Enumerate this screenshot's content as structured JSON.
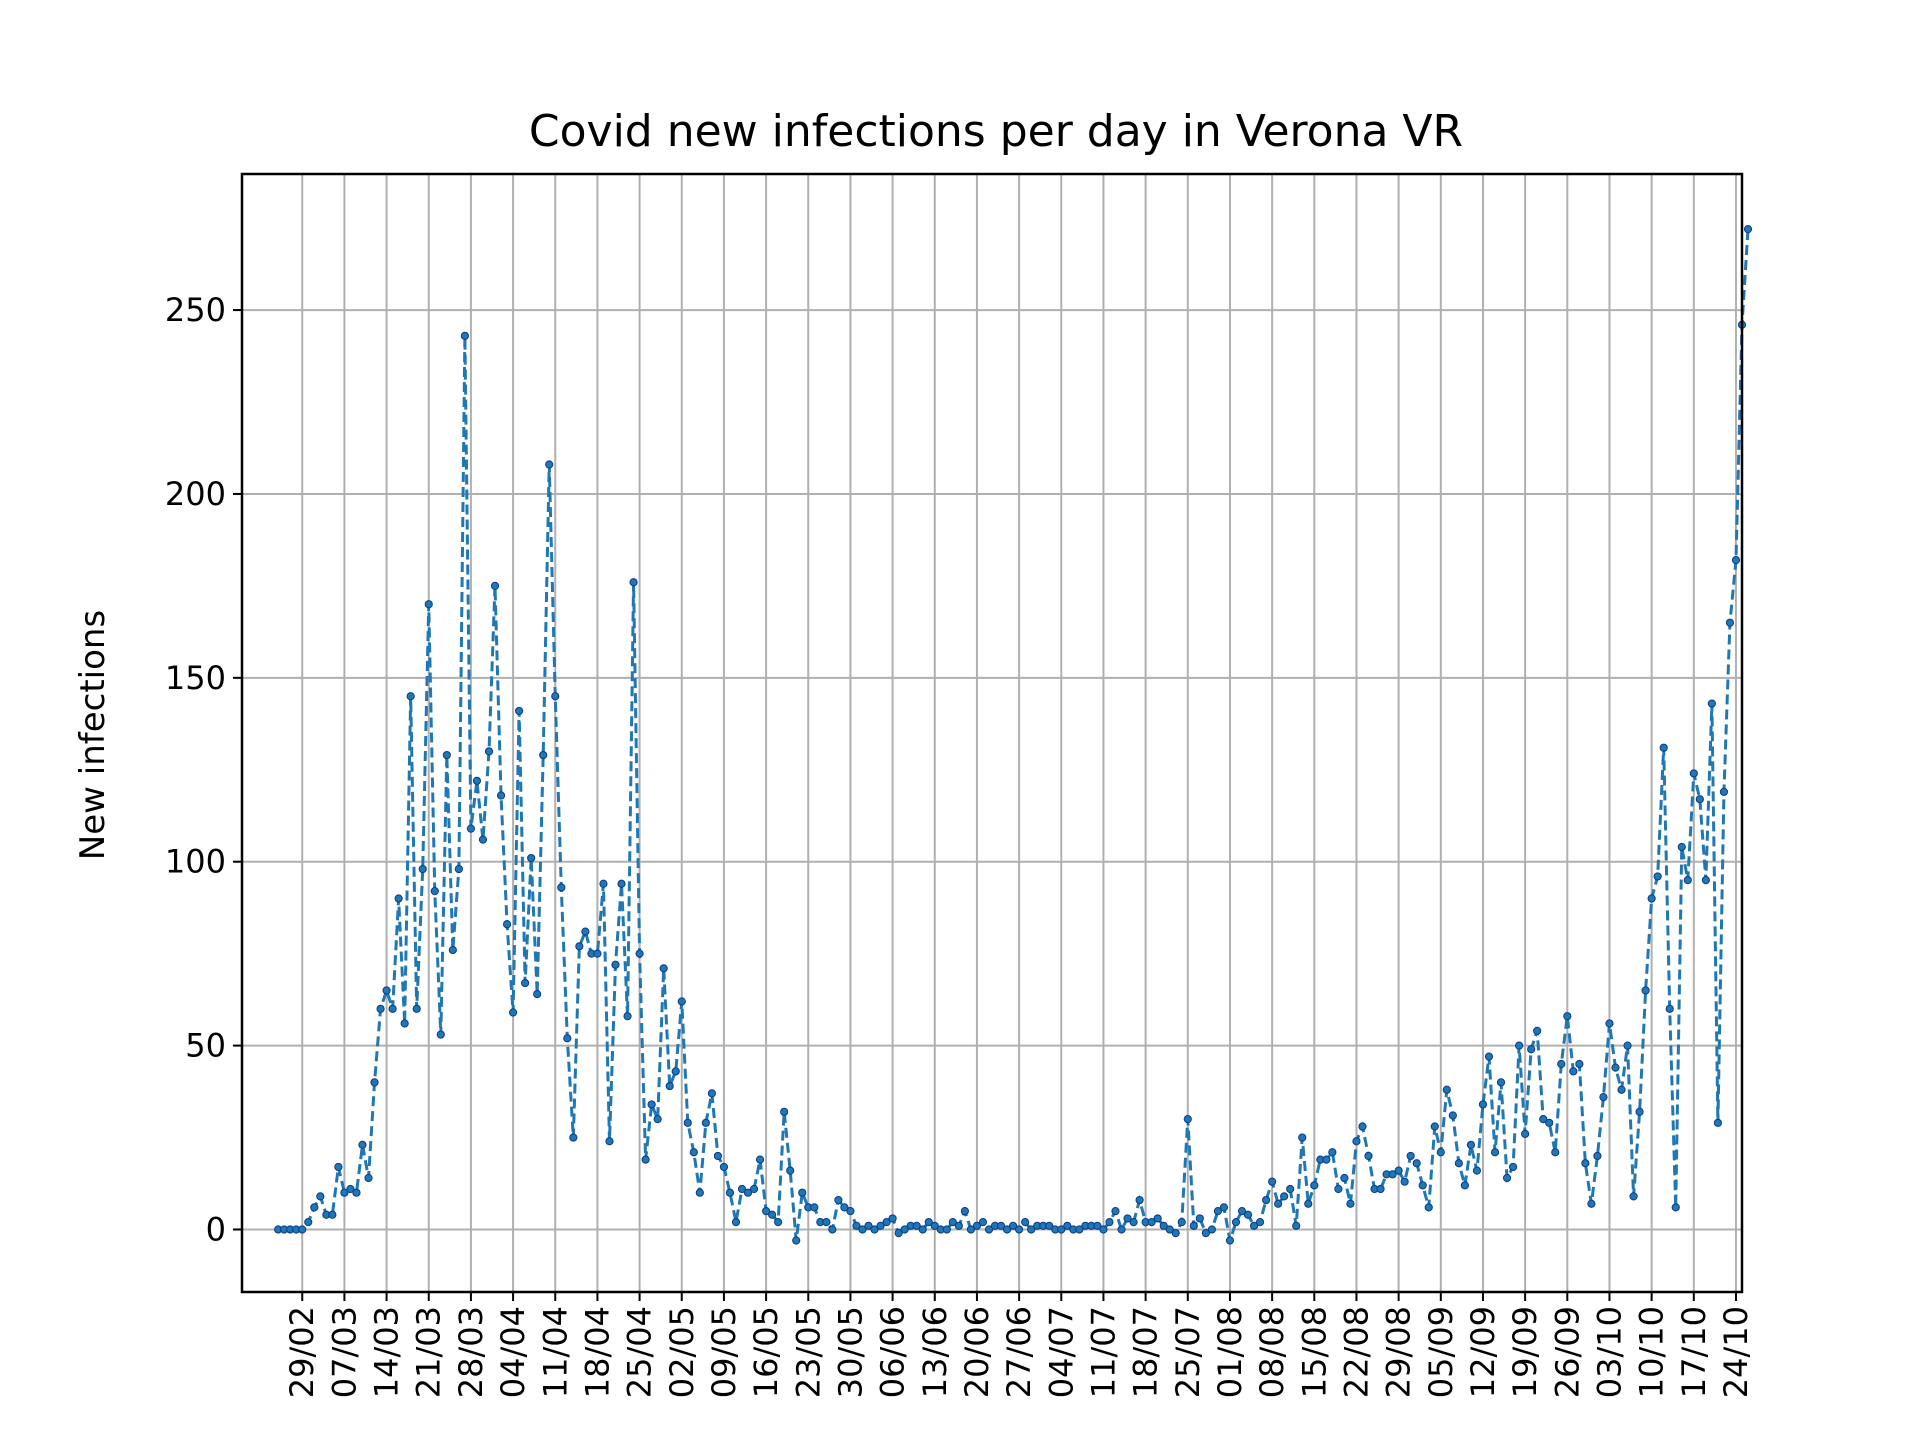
{
  "chart_data": {
    "type": "line",
    "title": "Covid new infections per day in Verona VR",
    "xlabel": "",
    "ylabel": "New infections",
    "ylim": [
      -17,
      287
    ],
    "xlim_days": [
      -6,
      243
    ],
    "grid": true,
    "yticks": [
      0,
      50,
      100,
      150,
      200,
      250
    ],
    "xticks": [
      {
        "label": "29/02",
        "day": 4
      },
      {
        "label": "07/03",
        "day": 11
      },
      {
        "label": "14/03",
        "day": 18
      },
      {
        "label": "21/03",
        "day": 25
      },
      {
        "label": "28/03",
        "day": 32
      },
      {
        "label": "04/04",
        "day": 39
      },
      {
        "label": "11/04",
        "day": 46
      },
      {
        "label": "18/04",
        "day": 53
      },
      {
        "label": "25/04",
        "day": 60
      },
      {
        "label": "02/05",
        "day": 67
      },
      {
        "label": "09/05",
        "day": 74
      },
      {
        "label": "16/05",
        "day": 81
      },
      {
        "label": "23/05",
        "day": 88
      },
      {
        "label": "30/05",
        "day": 95
      },
      {
        "label": "06/06",
        "day": 102
      },
      {
        "label": "13/06",
        "day": 109
      },
      {
        "label": "20/06",
        "day": 116
      },
      {
        "label": "27/06",
        "day": 123
      },
      {
        "label": "04/07",
        "day": 130
      },
      {
        "label": "11/07",
        "day": 137
      },
      {
        "label": "18/07",
        "day": 144
      },
      {
        "label": "25/07",
        "day": 151
      },
      {
        "label": "01/08",
        "day": 158
      },
      {
        "label": "08/08",
        "day": 165
      },
      {
        "label": "15/08",
        "day": 172
      },
      {
        "label": "22/08",
        "day": 179
      },
      {
        "label": "29/08",
        "day": 186
      },
      {
        "label": "05/09",
        "day": 193
      },
      {
        "label": "12/09",
        "day": 200
      },
      {
        "label": "19/09",
        "day": 207
      },
      {
        "label": "26/09",
        "day": 214
      },
      {
        "label": "03/10",
        "day": 221
      },
      {
        "label": "10/10",
        "day": 228
      },
      {
        "label": "17/10",
        "day": 235
      },
      {
        "label": "24/10",
        "day": 242
      }
    ],
    "series": [
      {
        "color": "#1f77b4",
        "values": [
          0,
          0,
          0,
          0,
          0,
          2,
          6,
          9,
          4,
          4,
          17,
          10,
          11,
          10,
          23,
          14,
          40,
          60,
          65,
          60,
          90,
          56,
          145,
          60,
          98,
          170,
          92,
          53,
          129,
          76,
          98,
          243,
          109,
          122,
          106,
          130,
          175,
          118,
          83,
          59,
          141,
          67,
          101,
          64,
          129,
          208,
          145,
          93,
          52,
          25,
          77,
          81,
          75,
          75,
          94,
          24,
          72,
          94,
          58,
          176,
          75,
          19,
          34,
          30,
          71,
          39,
          43,
          62,
          29,
          21,
          10,
          29,
          37,
          20,
          17,
          10,
          2,
          11,
          10,
          11,
          19,
          5,
          4,
          2,
          32,
          16,
          -3,
          10,
          6,
          6,
          2,
          2,
          0,
          8,
          6,
          5,
          1,
          0,
          1,
          0,
          1,
          2,
          3,
          -1,
          0,
          1,
          1,
          0,
          2,
          1,
          0,
          0,
          2,
          1,
          5,
          0,
          1,
          2,
          0,
          1,
          1,
          0,
          1,
          0,
          2,
          0,
          1,
          1,
          1,
          0,
          0,
          1,
          0,
          0,
          1,
          1,
          1,
          0,
          2,
          5,
          0,
          3,
          2,
          8,
          2,
          2,
          3,
          1,
          0,
          -1,
          2,
          30,
          1,
          3,
          -1,
          0,
          5,
          6,
          -3,
          2,
          5,
          4,
          1,
          2,
          8,
          13,
          7,
          9,
          11,
          1,
          25,
          7,
          12,
          19,
          19,
          21,
          11,
          14,
          7,
          24,
          28,
          20,
          11,
          11,
          15,
          15,
          16,
          13,
          20,
          18,
          12,
          6,
          28,
          21,
          38,
          31,
          18,
          12,
          23,
          16,
          34,
          47,
          21,
          40,
          14,
          17,
          50,
          26,
          49,
          54,
          30,
          29,
          21,
          45,
          58,
          43,
          45,
          18,
          7,
          20,
          36,
          56,
          44,
          38,
          50,
          9,
          32,
          65,
          90,
          96,
          131,
          60,
          6,
          104,
          95,
          124,
          117,
          95,
          143,
          29,
          119,
          165,
          182,
          246,
          272
        ]
      }
    ]
  }
}
